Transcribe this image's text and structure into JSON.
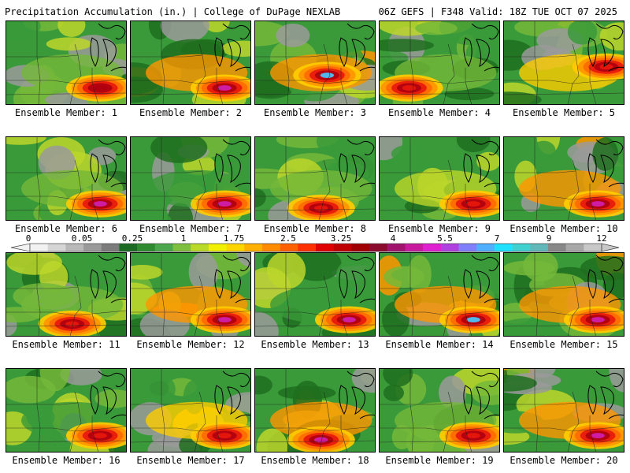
{
  "header": {
    "title_left": "Precipitation Accumulation (in.) | College of DuPage NEXLAB",
    "title_right": "06Z GEFS | F348 Valid: 18Z TUE OCT 07 2025"
  },
  "colorbar": {
    "labels": [
      "0",
      "0.05",
      "0.25",
      "1",
      "1.75",
      "2.5",
      "3.25",
      "4",
      "5.5",
      "7",
      "9",
      "12"
    ],
    "colors": [
      "#f2f2f2",
      "#d6d6d6",
      "#b9b9b9",
      "#9a9a9a",
      "#7c7c7c",
      "#1b6b24",
      "#2e8b2e",
      "#4aa84a",
      "#7fbf3f",
      "#bada2a",
      "#f0f000",
      "#ffd500",
      "#ffb000",
      "#ff8c00",
      "#ff6000",
      "#ff3000",
      "#e00000",
      "#c00000",
      "#a00000",
      "#8a0b2e",
      "#a0146e",
      "#c81a9c",
      "#e020d0",
      "#b040e0",
      "#8080ff",
      "#50b0ff",
      "#20e0ff",
      "#40d0d0",
      "#60b8b8",
      "#888888",
      "#a8a8a8",
      "#c8c8c8"
    ]
  },
  "palette": {
    "dark_green": "#1f6e1f",
    "green": "#3a9a3a",
    "light_green": "#74b83a",
    "yellow_green": "#bcd62a",
    "yellow": "#f2ee10",
    "gold": "#ffcc00",
    "orange": "#ff9500",
    "dark_orange": "#ff6a00",
    "red": "#e8180c",
    "dark_red": "#b00010",
    "magenta": "#d020b0",
    "cyan": "#48c8ff",
    "gray": "#9a9a9a",
    "light_gray": "#cfcfcf"
  },
  "members": [
    {
      "label": "Ensemble Member: 1",
      "dominant": "light_green",
      "max_level": "dark_red",
      "hotspot": "south-east"
    },
    {
      "label": "Ensemble Member: 2",
      "dominant": "orange",
      "max_level": "magenta",
      "hotspot": "south-east"
    },
    {
      "label": "Ensemble Member: 3",
      "dominant": "orange",
      "max_level": "cyan",
      "hotspot": "center"
    },
    {
      "label": "Ensemble Member: 4",
      "dominant": "light_green",
      "max_level": "red",
      "hotspot": "south-west"
    },
    {
      "label": "Ensemble Member: 5",
      "dominant": "gold",
      "max_level": "red",
      "hotspot": "east"
    },
    {
      "label": "Ensemble Member: 6",
      "dominant": "light_green",
      "max_level": "magenta",
      "hotspot": "south-east"
    },
    {
      "label": "Ensemble Member: 7",
      "dominant": "green",
      "max_level": "magenta",
      "hotspot": "south-east"
    },
    {
      "label": "Ensemble Member: 8",
      "dominant": "light_green",
      "max_level": "red",
      "hotspot": "south"
    },
    {
      "label": "Ensemble Member: 9",
      "dominant": "yellow_green",
      "max_level": "red",
      "hotspot": "south-east"
    },
    {
      "label": "Ensemble Member: 10",
      "dominant": "orange",
      "max_level": "magenta",
      "hotspot": "south-east"
    },
    {
      "label": "Ensemble Member: 11",
      "dominant": "light_green",
      "max_level": "red",
      "hotspot": "south"
    },
    {
      "label": "Ensemble Member: 12",
      "dominant": "orange",
      "max_level": "magenta",
      "hotspot": "south-east"
    },
    {
      "label": "Ensemble Member: 13",
      "dominant": "green",
      "max_level": "magenta",
      "hotspot": "south-east"
    },
    {
      "label": "Ensemble Member: 14",
      "dominant": "orange",
      "max_level": "cyan",
      "hotspot": "south-east"
    },
    {
      "label": "Ensemble Member: 15",
      "dominant": "orange",
      "max_level": "magenta",
      "hotspot": "south-east"
    },
    {
      "label": "Ensemble Member: 16",
      "dominant": "green",
      "max_level": "red",
      "hotspot": "south-east"
    },
    {
      "label": "Ensemble Member: 17",
      "dominant": "gold",
      "max_level": "red",
      "hotspot": "south-east"
    },
    {
      "label": "Ensemble Member: 18",
      "dominant": "orange",
      "max_level": "magenta",
      "hotspot": "south"
    },
    {
      "label": "Ensemble Member: 19",
      "dominant": "light_green",
      "max_level": "red",
      "hotspot": "south-east"
    },
    {
      "label": "Ensemble Member: 20",
      "dominant": "orange",
      "max_level": "magenta",
      "hotspot": "south-east"
    }
  ]
}
